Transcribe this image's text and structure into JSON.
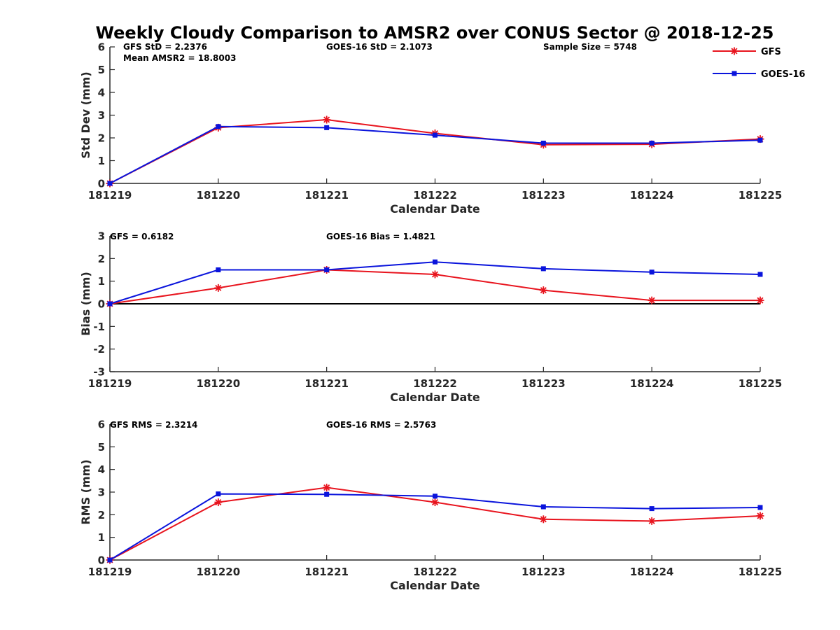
{
  "title": "Weekly Cloudy Comparison to AMSR2 over CONUS Sector @ 2018-12-25",
  "colors": {
    "gfs": "#e8141e",
    "goes": "#0a14dc",
    "axis": "#262626",
    "zero_line": "#000000"
  },
  "legend": [
    {
      "label": "GFS",
      "marker": "asterisk",
      "color": "#e8141e"
    },
    {
      "label": "GOES-16",
      "marker": "square",
      "color": "#0a14dc"
    }
  ],
  "chart_data": [
    {
      "type": "line",
      "title": "",
      "xlabel": "Calendar Date",
      "ylabel": "Std Dev (mm)",
      "categories": [
        "181219",
        "181220",
        "181221",
        "181222",
        "181223",
        "181224",
        "181225"
      ],
      "yticks": [
        "0",
        "1",
        "2",
        "3",
        "4",
        "5",
        "6"
      ],
      "ylim": [
        0,
        6
      ],
      "zero_line": false,
      "series": [
        {
          "name": "GFS",
          "values": [
            0.0,
            2.45,
            2.8,
            2.2,
            1.7,
            1.72,
            1.95
          ]
        },
        {
          "name": "GOES-16",
          "values": [
            0.0,
            2.5,
            2.45,
            2.12,
            1.77,
            1.77,
            1.9
          ]
        }
      ],
      "annotations": [
        "GFS StD = 2.2376",
        "Mean AMSR2 = 18.8003",
        "GOES-16 StD = 2.1073",
        "Sample Size = 5748"
      ]
    },
    {
      "type": "line",
      "title": "",
      "xlabel": "Calendar Date",
      "ylabel": "Bias (mm)",
      "categories": [
        "181219",
        "181220",
        "181221",
        "181222",
        "181223",
        "181224",
        "181225"
      ],
      "yticks": [
        "-3",
        "-2",
        "-1",
        "0",
        "1",
        "2",
        "3"
      ],
      "ylim": [
        -3,
        3
      ],
      "zero_line": true,
      "series": [
        {
          "name": "GFS",
          "values": [
            0.0,
            0.7,
            1.5,
            1.3,
            0.6,
            0.15,
            0.15
          ]
        },
        {
          "name": "GOES-16",
          "values": [
            0.0,
            1.5,
            1.5,
            1.85,
            1.55,
            1.4,
            1.3
          ]
        }
      ],
      "annotations": [
        "GFS = 0.6182",
        "GOES-16 Bias  = 1.4821"
      ]
    },
    {
      "type": "line",
      "title": "",
      "xlabel": "Calendar Date",
      "ylabel": "RMS (mm)",
      "categories": [
        "181219",
        "181220",
        "181221",
        "181222",
        "181223",
        "181224",
        "181225"
      ],
      "yticks": [
        "0",
        "1",
        "2",
        "3",
        "4",
        "5",
        "6"
      ],
      "ylim": [
        0,
        6
      ],
      "zero_line": false,
      "series": [
        {
          "name": "GFS",
          "values": [
            0.0,
            2.55,
            3.2,
            2.55,
            1.8,
            1.72,
            1.95
          ]
        },
        {
          "name": "GOES-16",
          "values": [
            0.0,
            2.92,
            2.9,
            2.82,
            2.35,
            2.27,
            2.32
          ]
        }
      ],
      "annotations": [
        "GFS RMS = 2.3214",
        "GOES-16 RMS = 2.5763"
      ]
    }
  ]
}
